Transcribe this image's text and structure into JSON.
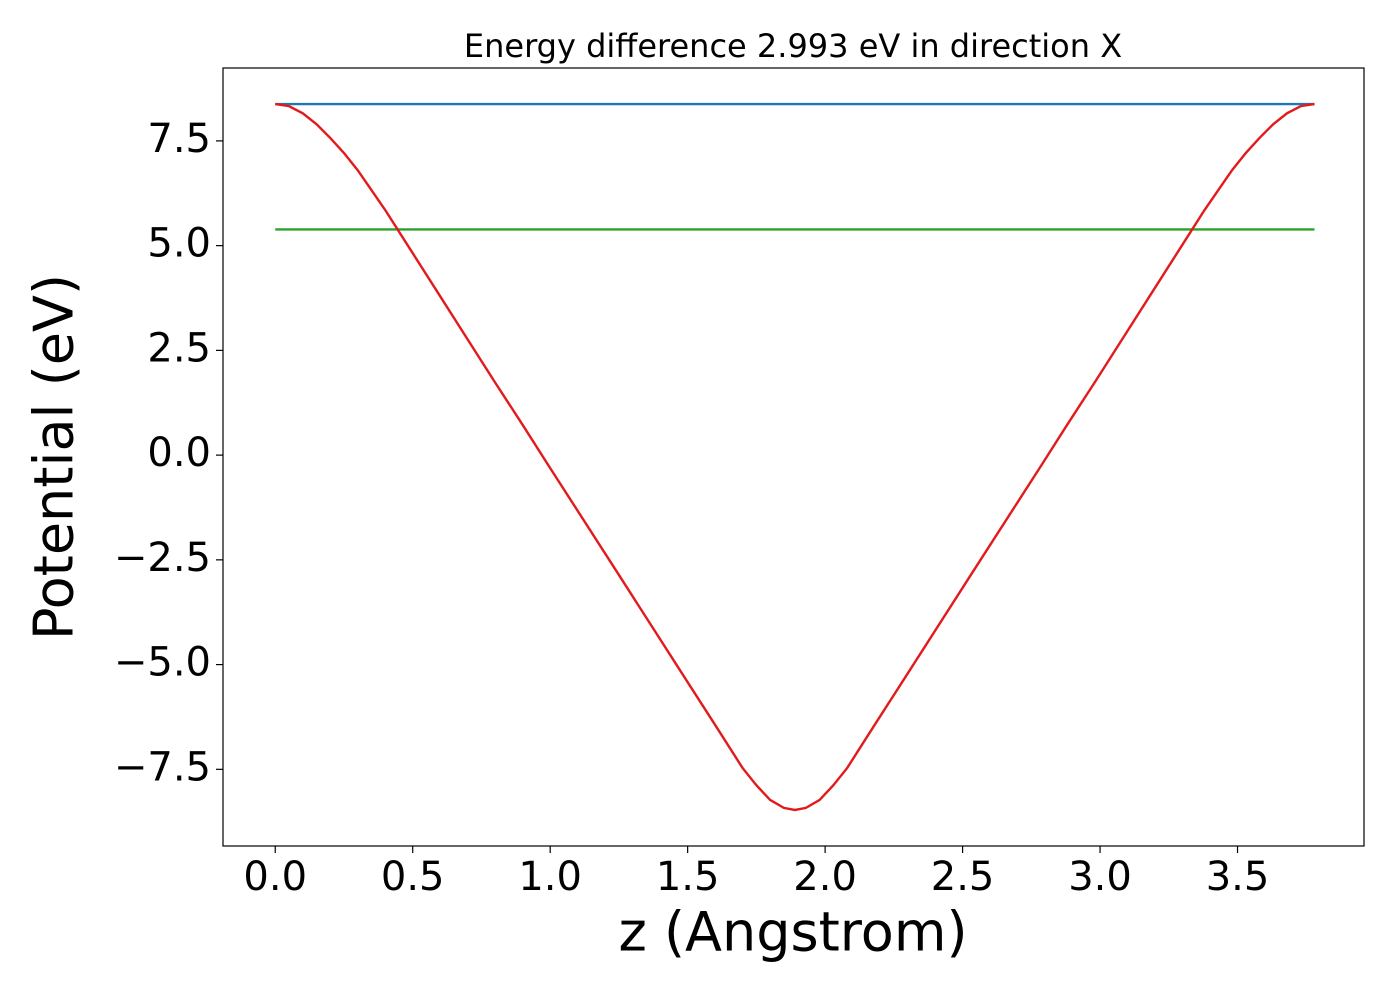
{
  "chart_data": {
    "type": "line",
    "title": "Energy difference 2.993 eV in direction X",
    "x_label": "z (Angstrom)",
    "y_label": "Potential (eV)",
    "xlim": [
      -0.19,
      3.96
    ],
    "ylim": [
      -9.33,
      9.24
    ],
    "xticks": [
      {
        "value": 0,
        "label": "0.0"
      },
      0.5,
      {
        "value": 1,
        "label": "1.0"
      },
      1.5,
      {
        "value": 2,
        "label": "2.0"
      },
      2.5,
      {
        "value": 3,
        "label": "3.0"
      },
      3.5
    ],
    "yticks": [
      {
        "value": -7.5,
        "label": "−7.5"
      },
      {
        "value": -5,
        "label": "−5.0"
      },
      {
        "value": -2.5,
        "label": "−2.5"
      },
      {
        "value": 0,
        "label": "0.0"
      },
      2.5,
      {
        "value": 5,
        "label": "5.0"
      },
      7.5
    ],
    "series": [
      {
        "color": "#1f77b4",
        "x": [
          0,
          3.78
        ],
        "values": [
          8.38,
          8.38
        ]
      },
      {
        "color": "#2ca02c",
        "x": [
          0,
          3.78
        ],
        "values": [
          5.387,
          5.387
        ]
      },
      {
        "color": "#e31a1c",
        "x": [
          0,
          0.05,
          0.1,
          0.15,
          0.2,
          0.25,
          0.3,
          0.4,
          0.5,
          0.6,
          0.7,
          0.8,
          0.9,
          1.0,
          1.25,
          1.5,
          1.6,
          1.7,
          1.75,
          1.8,
          1.85,
          1.89,
          1.93,
          1.98,
          2.03,
          2.08,
          2.18,
          2.28,
          2.53,
          2.78,
          2.88,
          2.98,
          3.08,
          3.18,
          3.28,
          3.38,
          3.48,
          3.53,
          3.58,
          3.63,
          3.68,
          3.73,
          3.78
        ],
        "values": [
          8.38,
          8.33,
          8.16,
          7.9,
          7.57,
          7.21,
          6.8,
          5.85,
          4.82,
          3.79,
          2.76,
          1.73,
          0.72,
          -0.31,
          -2.86,
          -5.42,
          -6.44,
          -7.47,
          -7.88,
          -8.23,
          -8.42,
          -8.47,
          -8.42,
          -8.23,
          -7.88,
          -7.47,
          -6.44,
          -5.42,
          -2.86,
          -0.31,
          0.72,
          1.73,
          2.76,
          3.79,
          4.82,
          5.85,
          6.8,
          7.21,
          7.57,
          7.9,
          8.16,
          8.33,
          8.38
        ]
      }
    ]
  }
}
